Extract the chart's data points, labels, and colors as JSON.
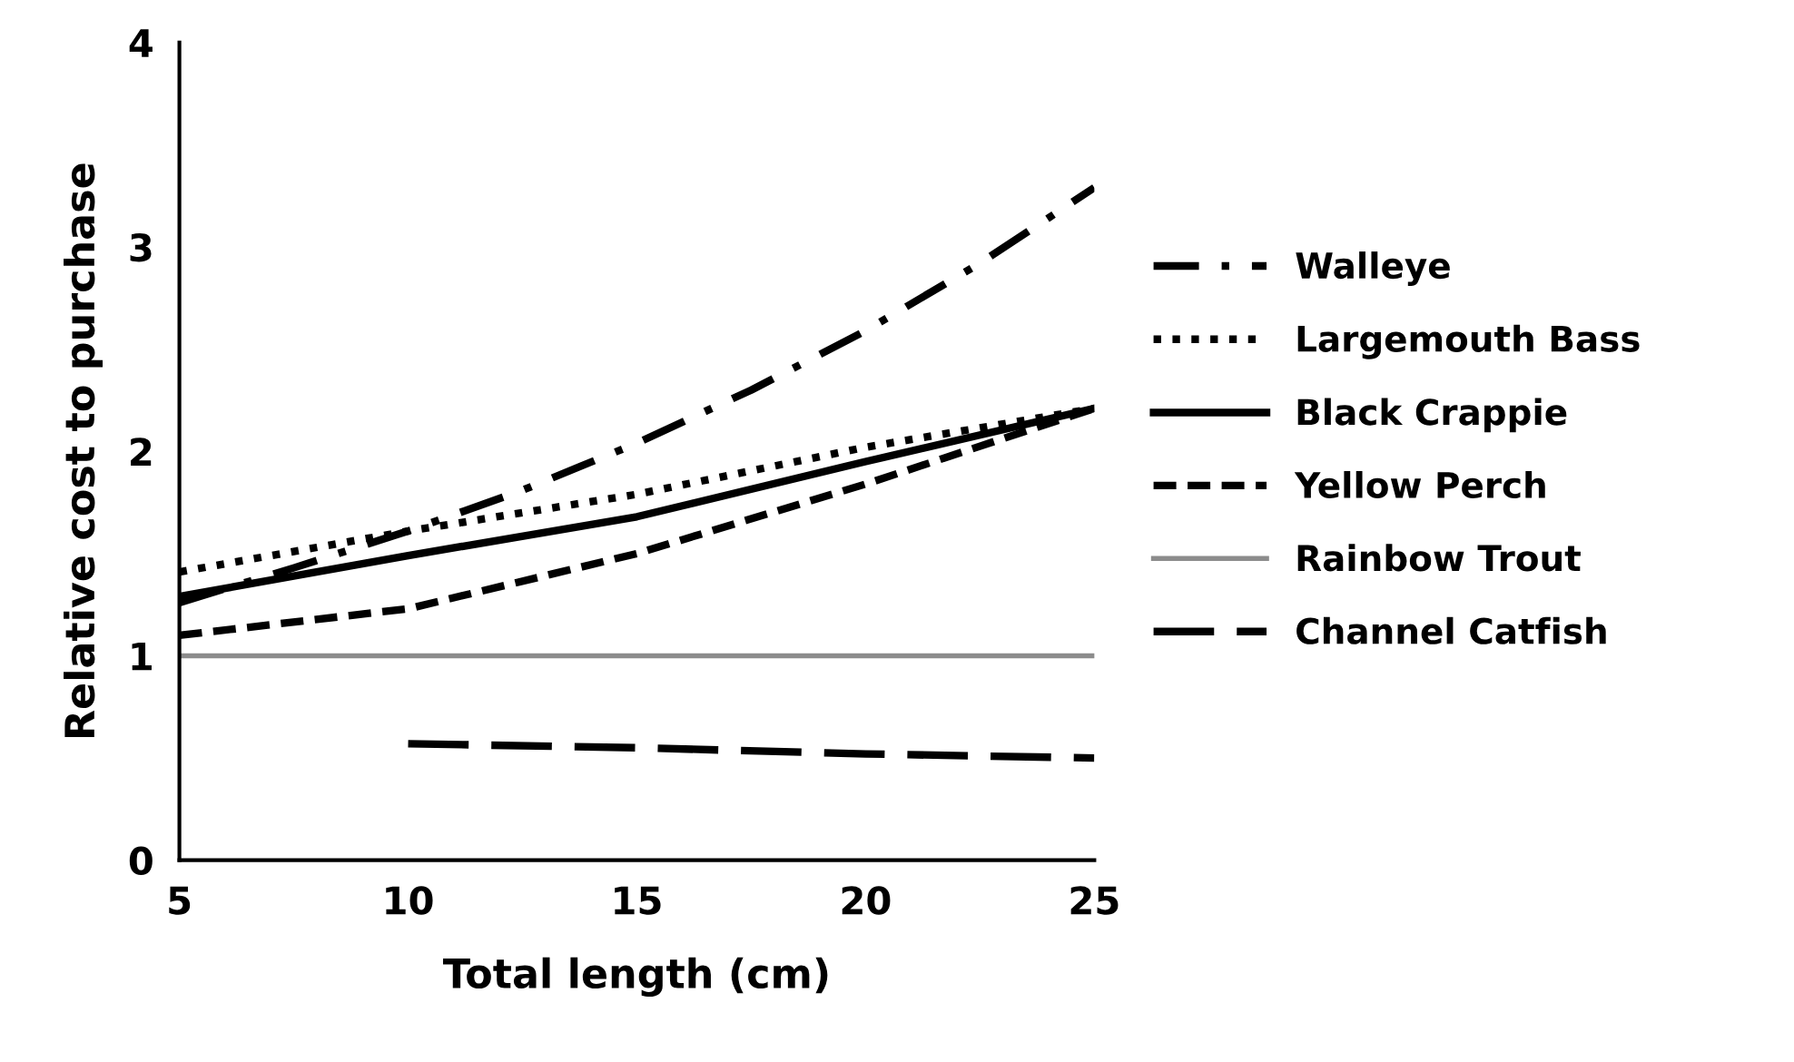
{
  "chart_data": {
    "type": "line",
    "xlabel": "Total length (cm)",
    "ylabel": "Relative cost to purchase",
    "xlim": [
      5,
      25
    ],
    "xticks": [
      5,
      10,
      15,
      20,
      25
    ],
    "ylim": [
      0,
      4
    ],
    "yticks": [
      0,
      1,
      2,
      3,
      4
    ],
    "grid": false,
    "legend": "right",
    "marker": "none",
    "series": [
      {
        "name": "Walleye",
        "color": "#000000",
        "line_style": "dashdot",
        "x": [
          5,
          7.5,
          10,
          12.5,
          15,
          17.5,
          20,
          22.5,
          25
        ],
        "values": [
          1.26,
          1.43,
          1.61,
          1.81,
          2.04,
          2.3,
          2.59,
          2.92,
          3.29
        ]
      },
      {
        "name": "Largemouth Bass",
        "color": "#000000",
        "line_style": "dotted",
        "x": [
          5,
          10,
          15,
          20,
          25
        ],
        "values": [
          1.41,
          1.61,
          1.79,
          2.02,
          2.21
        ]
      },
      {
        "name": "Black Crappie",
        "color": "#000000",
        "line_style": "solid",
        "x": [
          5,
          10,
          15,
          20,
          25
        ],
        "values": [
          1.29,
          1.49,
          1.68,
          1.95,
          2.21
        ]
      },
      {
        "name": "Yellow Perch",
        "color": "#000000",
        "line_style": "dashed",
        "x": [
          5,
          10,
          15,
          20,
          25
        ],
        "values": [
          1.1,
          1.23,
          1.5,
          1.84,
          2.21
        ]
      },
      {
        "name": "Rainbow Trout",
        "color": "#8c8c8c",
        "line_style": "solid",
        "x": [
          5,
          25
        ],
        "values": [
          1.0,
          1.0
        ]
      },
      {
        "name": "Channel Catfish",
        "color": "#000000",
        "line_style": "longdash",
        "x": [
          10,
          15,
          20,
          25
        ],
        "values": [
          0.57,
          0.55,
          0.52,
          0.5
        ]
      }
    ]
  }
}
